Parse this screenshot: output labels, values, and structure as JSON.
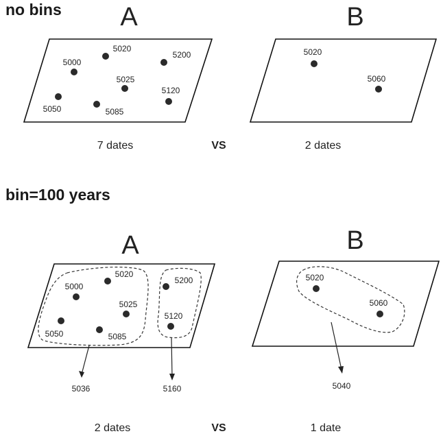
{
  "sections": [
    {
      "title": "no bins",
      "panels": [
        {
          "letter": "A",
          "points": [
            "5000",
            "5020",
            "5200",
            "5025",
            "5120",
            "5050",
            "5085"
          ],
          "caption": "7 dates"
        },
        {
          "letter": "B",
          "points": [
            "5020",
            "5060"
          ],
          "caption": "2 dates"
        }
      ],
      "vs": "VS"
    },
    {
      "title": "bin=100 years",
      "panels": [
        {
          "letter": "A",
          "points": [
            "5000",
            "5020",
            "5025",
            "5050",
            "5085",
            "5200",
            "5120"
          ],
          "bins": [
            "5036",
            "5160"
          ],
          "caption": "2 dates"
        },
        {
          "letter": "B",
          "points": [
            "5020",
            "5060"
          ],
          "bins": [
            "5040"
          ],
          "caption": "1 date"
        }
      ],
      "vs": "VS"
    }
  ]
}
